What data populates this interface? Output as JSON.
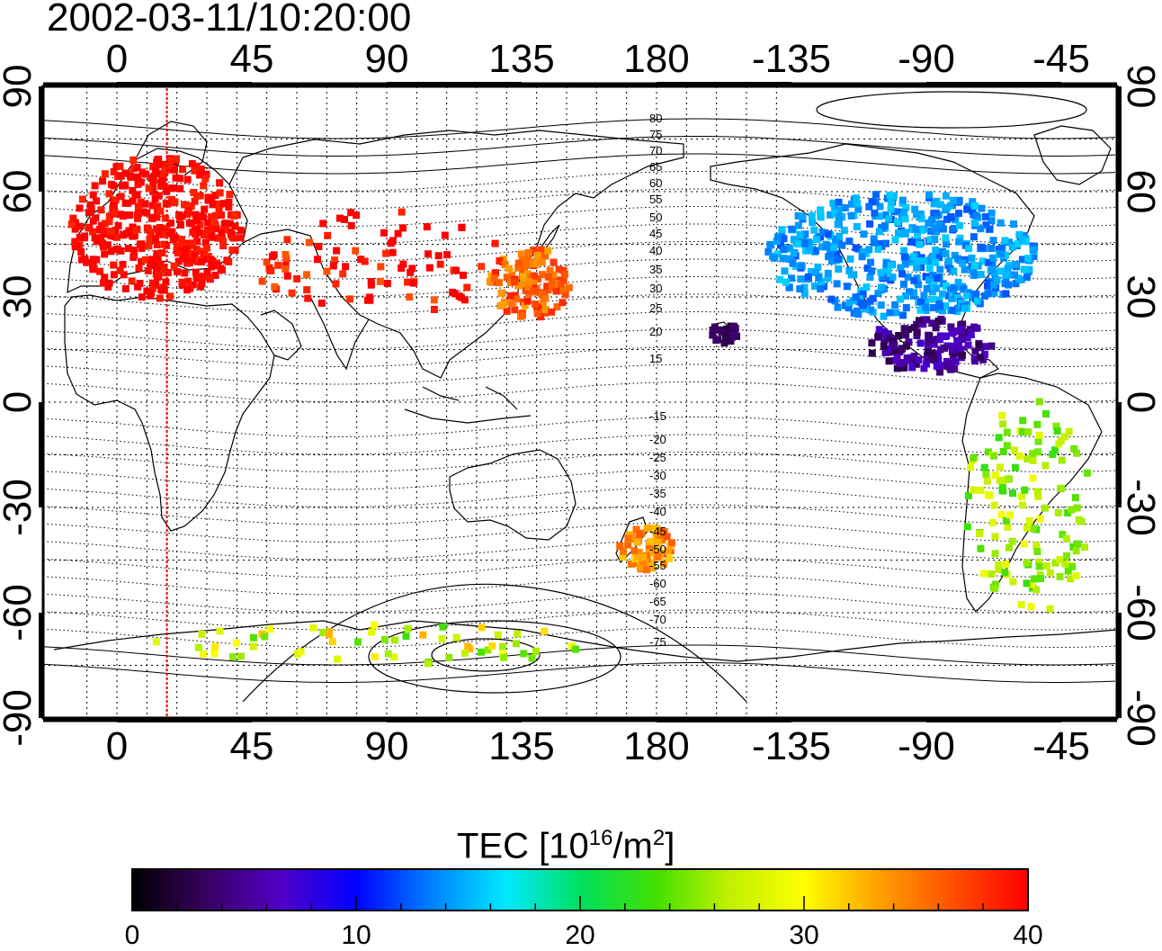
{
  "timestamp": "2002-03-11/10:20:00",
  "map": {
    "top_lon_labels": [
      "0",
      "45",
      "90",
      "135",
      "180",
      "-135",
      "-90",
      "-45"
    ],
    "bottom_lon_labels": [
      "0",
      "45",
      "90",
      "135",
      "180",
      "-135",
      "-90",
      "-45"
    ],
    "left_lat_labels": [
      "90",
      "60",
      "30",
      "0",
      "-30",
      "-60",
      "-90"
    ],
    "right_lat_labels": [
      "90",
      "60",
      "30",
      "0",
      "-30",
      "-60",
      "-90"
    ],
    "contour_labels_north": [
      "80",
      "75",
      "70",
      "65",
      "60",
      "55",
      "50",
      "45",
      "40",
      "35",
      "30",
      "25",
      "20",
      "15"
    ],
    "contour_labels_south": [
      "-15",
      "-20",
      "-25",
      "-30",
      "-35",
      "-40",
      "-45",
      "-50",
      "-55",
      "-60",
      "-65",
      "-70",
      "-75"
    ],
    "terminator_longitude": 25,
    "terminator_color": "#e00000"
  },
  "colorbar": {
    "title_prefix": "TEC  [10",
    "title_sup1": "16",
    "title_mid": "/m",
    "title_sup2": "2",
    "title_suffix": "]",
    "tick_labels": [
      "0",
      "10",
      "20",
      "30",
      "40"
    ],
    "min": 0,
    "max": 40,
    "colors": [
      "#000000",
      "#3a0060",
      "#5000c8",
      "#0000ff",
      "#0080ff",
      "#00e8ff",
      "#00e060",
      "#40e000",
      "#c0f000",
      "#ffff00",
      "#ffa000",
      "#ff5000",
      "#ff0000"
    ]
  },
  "data_regions": [
    {
      "name": "europe",
      "tec": 40
    },
    {
      "name": "east-asia",
      "tec": 40
    },
    {
      "name": "japan",
      "tec": 36
    },
    {
      "name": "north-america",
      "tec": 14
    },
    {
      "name": "central-america",
      "tec": 5
    },
    {
      "name": "south-america",
      "tec": 26
    },
    {
      "name": "new-zealand",
      "tec": 34
    },
    {
      "name": "antarctica",
      "tec": 28
    },
    {
      "name": "hawaii",
      "tec": 3
    }
  ]
}
